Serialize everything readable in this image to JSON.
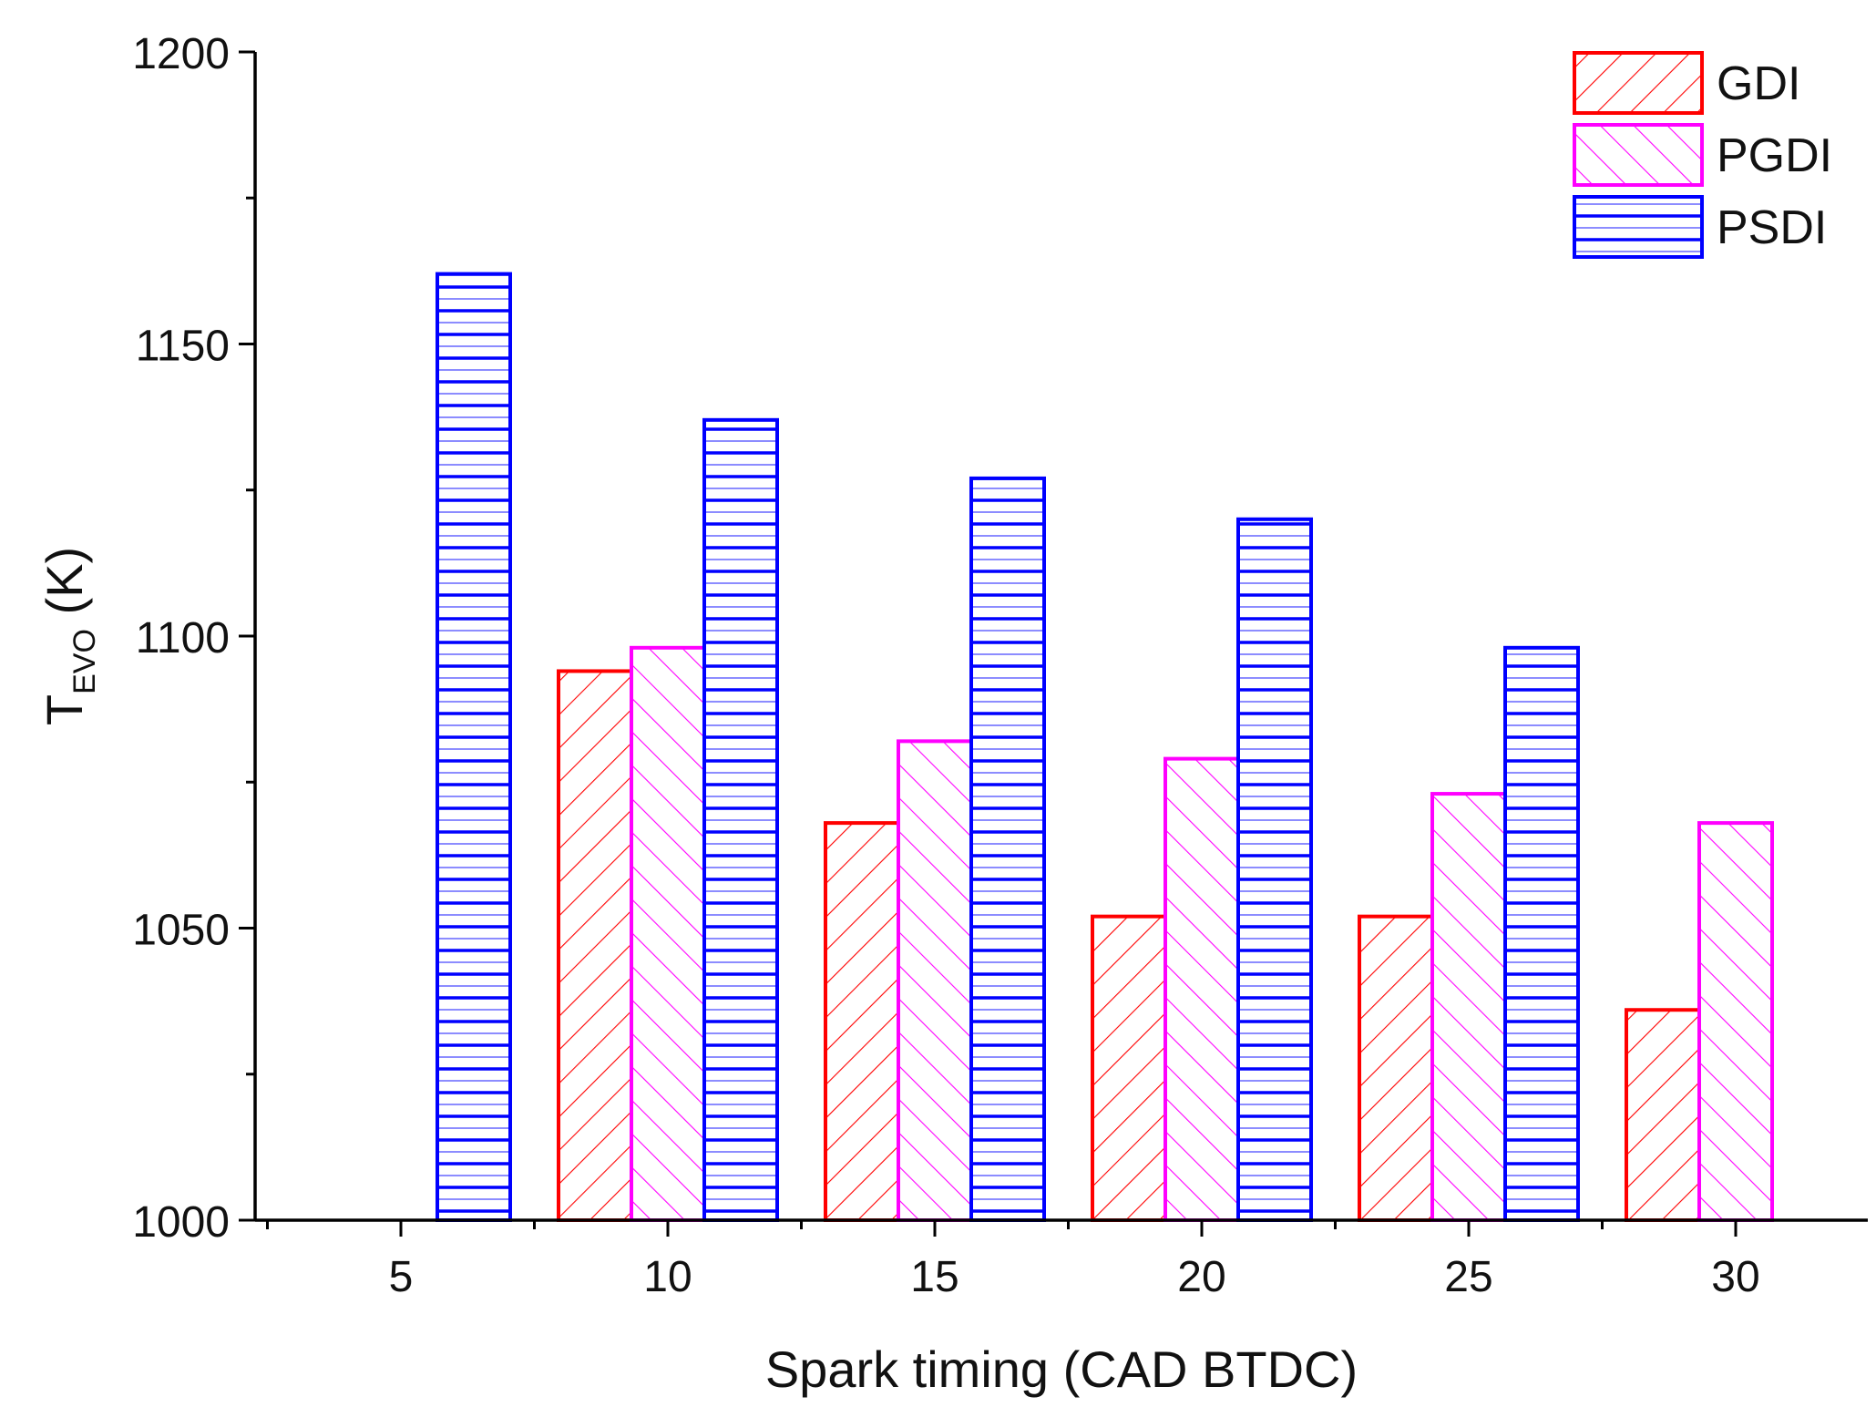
{
  "chart_data": {
    "type": "bar",
    "title": "",
    "xlabel": "Spark timing (CAD BTDC)",
    "ylabel": {
      "main": "T",
      "sub": "EVO",
      "unit": " (K)"
    },
    "categories": [
      "5",
      "10",
      "15",
      "20",
      "25",
      "30"
    ],
    "ylim": [
      1000,
      1200
    ],
    "yticks": [
      "1000",
      "1050",
      "1100",
      "1150",
      "1200"
    ],
    "grid": false,
    "legend_position": "top-right",
    "series": [
      {
        "name": "GDI",
        "color": "#ff0000",
        "pattern": "diagonal-up",
        "values": [
          null,
          1094,
          1068,
          1052,
          1052,
          1036
        ]
      },
      {
        "name": "PGDI",
        "color": "#ff00ff",
        "pattern": "diagonal-down",
        "values": [
          null,
          1098,
          1082,
          1079,
          1073,
          1068
        ]
      },
      {
        "name": "PSDI",
        "color": "#0000ff",
        "pattern": "horizontal",
        "values": [
          1162,
          1137,
          1127,
          1120,
          1098,
          null
        ]
      }
    ]
  }
}
